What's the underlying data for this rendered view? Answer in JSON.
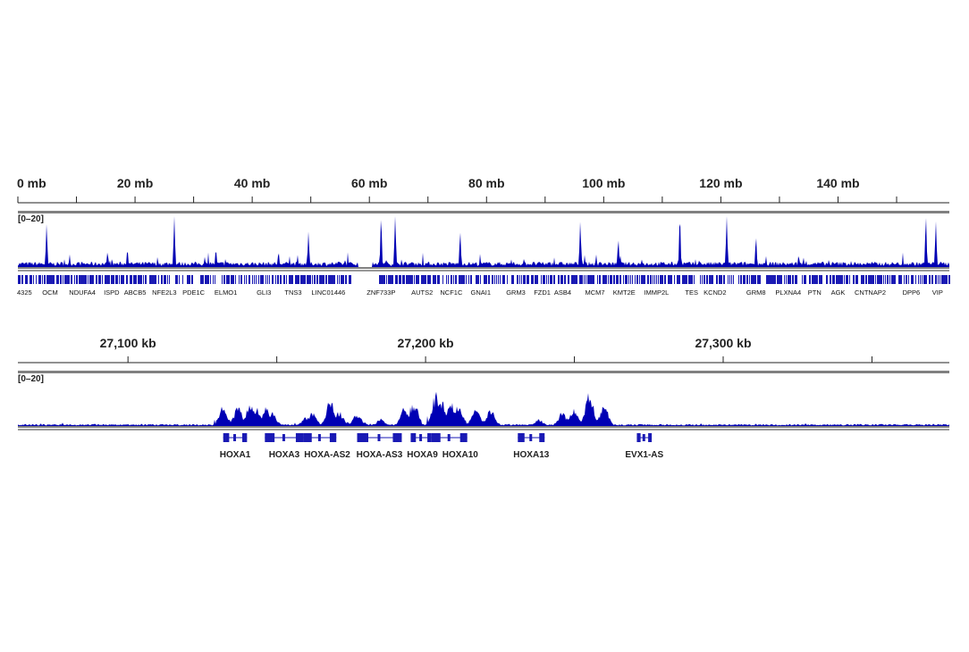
{
  "colors": {
    "signal": "#0000b4",
    "gene": "#1a1ab4",
    "ruler": "#222222",
    "divider": "#808080"
  },
  "chart_data": [
    {
      "type": "area",
      "unit": "mb",
      "xlim": [
        0,
        159
      ],
      "ticks": [
        0,
        20,
        40,
        60,
        80,
        100,
        120,
        140
      ],
      "tick_labels": [
        "0 mb",
        "20 mb",
        "40 mb",
        "60 mb",
        "80 mb",
        "100 mb",
        "120 mb",
        "140 mb"
      ],
      "data_range_label": "[0–20]",
      "ylim": [
        0,
        20
      ],
      "gap_mb": [
        58.0,
        60.5
      ],
      "peaks": [
        [
          4.9,
          17
        ],
        [
          15.3,
          6
        ],
        [
          18.7,
          7
        ],
        [
          26.7,
          20
        ],
        [
          33.8,
          7
        ],
        [
          44.5,
          6
        ],
        [
          49.6,
          14
        ],
        [
          62.0,
          20
        ],
        [
          64.4,
          21
        ],
        [
          75.5,
          14
        ],
        [
          96.0,
          18
        ],
        [
          102.5,
          11
        ],
        [
          113.0,
          20
        ],
        [
          121.0,
          20
        ],
        [
          126.0,
          12
        ],
        [
          155.0,
          20
        ],
        [
          156.7,
          18
        ]
      ],
      "genes": [
        "4325",
        "OCM",
        "NDUFA4",
        "ISPD",
        "ABCB5",
        "NFE2L3",
        "PDE1C",
        "ELMO1",
        "GLI3",
        "TNS3",
        "LINC01446",
        "ZNF733P",
        "AUTS2",
        "NCF1C",
        "GNAI1",
        "GRM3",
        "FZD1",
        "ASB4",
        "MCM7",
        "KMT2E",
        "IMMP2L",
        "TES",
        "KCND2",
        "GRM8",
        "PLXNA4",
        "PTN",
        "AGK",
        "CNTNAP2",
        "DPP6",
        "VIP"
      ],
      "gene_positions_mb": [
        0.5,
        5.5,
        11,
        16,
        20,
        25,
        30,
        35.5,
        42,
        47,
        53,
        62,
        69,
        74,
        79,
        85,
        89.5,
        93,
        98.5,
        103.5,
        109,
        115,
        119,
        126,
        131.5,
        136,
        140,
        145.5,
        152.5,
        157
      ]
    },
    {
      "type": "area",
      "unit": "kb",
      "xlim": [
        27063,
        27376
      ],
      "ticks": [
        27100,
        27150,
        27200,
        27250,
        27300,
        27350
      ],
      "tick_labels": [
        "27,100 kb",
        "",
        "27,200 kb",
        "",
        "27,300 kb",
        ""
      ],
      "data_range_label": "[0–20]",
      "ylim": [
        0,
        20
      ],
      "peaks": [
        [
          27132,
          9
        ],
        [
          27137,
          8
        ],
        [
          27141,
          10
        ],
        [
          27143,
          8
        ],
        [
          27146.5,
          8
        ],
        [
          27148.5,
          6
        ],
        [
          27160,
          4
        ],
        [
          27162,
          6
        ],
        [
          27168,
          11
        ],
        [
          27171,
          6
        ],
        [
          27177,
          5
        ],
        [
          27185,
          3
        ],
        [
          27193,
          8
        ],
        [
          27196,
          11
        ],
        [
          27203.5,
          14
        ],
        [
          27205.5,
          10
        ],
        [
          27208.5,
          10
        ],
        [
          27211,
          9
        ],
        [
          27217,
          8
        ],
        [
          27222,
          7
        ],
        [
          27238,
          3
        ],
        [
          27246,
          6
        ],
        [
          27250,
          8
        ],
        [
          27255,
          14
        ],
        [
          27260,
          9
        ]
      ],
      "genes": [
        {
          "name": "HOXA1",
          "start": 27132,
          "end": 27140
        },
        {
          "name": "HOXA3",
          "start": 27146,
          "end": 27159
        },
        {
          "name": "HOXA-AS2",
          "start": 27159,
          "end": 27170
        },
        {
          "name": "HOXA-AS3",
          "start": 27177,
          "end": 27192
        },
        {
          "name": "HOXA9",
          "start": 27195,
          "end": 27202
        },
        {
          "name": "HOXA10",
          "start": 27202,
          "end": 27214
        },
        {
          "name": "HOXA13",
          "start": 27231,
          "end": 27240
        },
        {
          "name": "EVX1-AS",
          "start": 27271,
          "end": 27276
        }
      ]
    }
  ]
}
